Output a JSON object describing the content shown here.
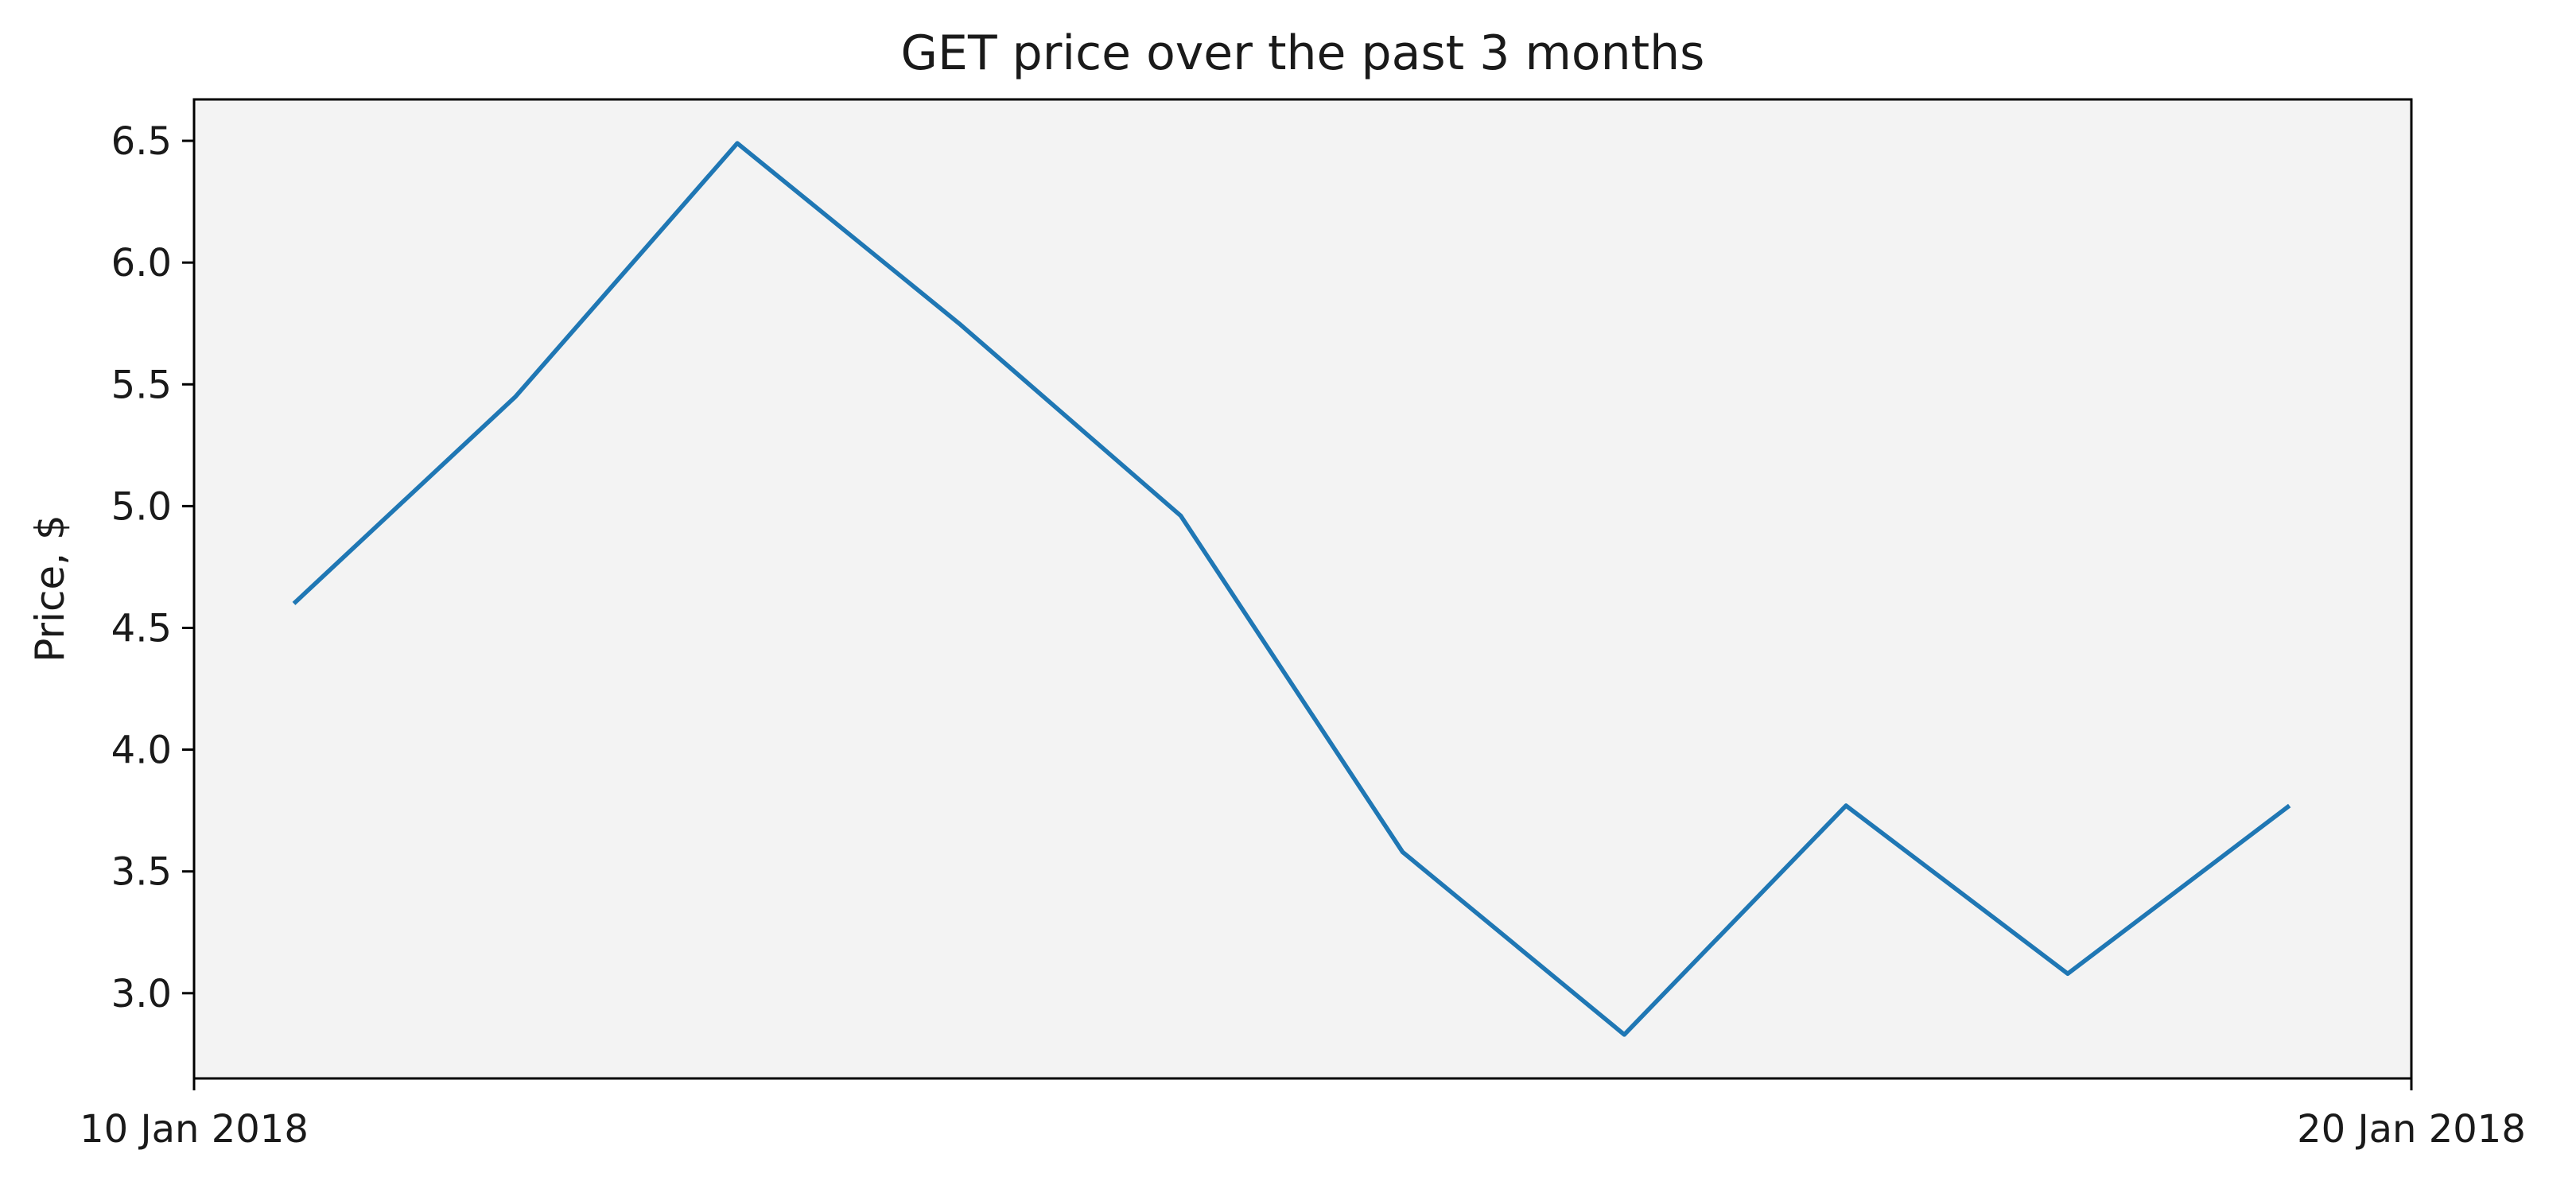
{
  "chart_data": {
    "type": "line",
    "title": "GET price over the past 3 months",
    "xlabel": "",
    "ylabel": "Price, $",
    "xlim": [
      "2018-01-10",
      "2018-01-20"
    ],
    "ylim": [
      2.65,
      6.67
    ],
    "x_tick_labels": [
      {
        "date": "2018-01-10",
        "label": "10 Jan 2018"
      },
      {
        "date": "2018-01-20",
        "label": "20 Jan 2018"
      }
    ],
    "y_ticks": [
      3.0,
      3.5,
      4.0,
      4.5,
      5.0,
      5.5,
      6.0,
      6.5
    ],
    "y_tick_labels": [
      "3.0",
      "3.5",
      "4.0",
      "4.5",
      "5.0",
      "5.5",
      "6.0",
      "6.5"
    ],
    "grid": false,
    "series": [
      {
        "x": [
          "2018-01-10 10:48",
          "2018-01-11 10:48",
          "2018-01-12 10:48",
          "2018-01-13 10:48",
          "2018-01-14 10:48",
          "2018-01-15 10:48",
          "2018-01-16 10:48",
          "2018-01-17 10:48",
          "2018-01-18 10:48",
          "2018-01-19 10:48"
        ],
        "values": [
          4.6,
          5.45,
          6.49,
          5.75,
          4.96,
          3.58,
          2.83,
          3.77,
          3.08,
          3.77
        ],
        "color": "#1f77b4"
      }
    ],
    "colors": {
      "plot_background": "#f3f3f3",
      "axes": "#000000",
      "line": "#1f77b4"
    }
  }
}
